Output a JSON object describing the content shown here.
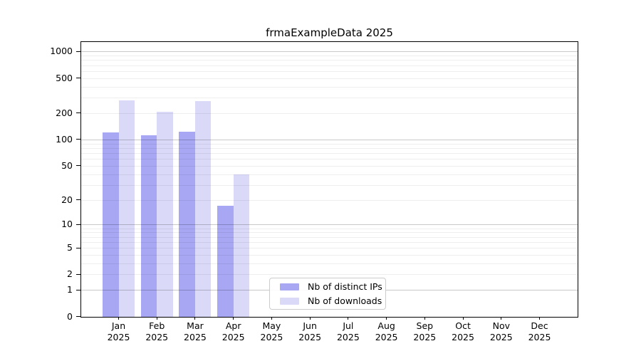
{
  "chart_data": {
    "type": "bar",
    "title": "frmaExampleData 2025",
    "x_categories": [
      "Jan",
      "Feb",
      "Mar",
      "Apr",
      "May",
      "Jun",
      "Jul",
      "Aug",
      "Sep",
      "Oct",
      "Nov",
      "Dec"
    ],
    "x_year": "2025",
    "series": [
      {
        "name": "Nb of distinct IPs",
        "color": "#a7a7f3",
        "values": [
          120,
          112,
          123,
          17,
          0,
          0,
          0,
          0,
          0,
          0,
          0,
          0
        ]
      },
      {
        "name": "Nb of downloads",
        "color": "#dadaf8",
        "values": [
          280,
          208,
          276,
          40,
          0,
          0,
          0,
          0,
          0,
          0,
          0,
          0
        ]
      }
    ],
    "y_scale": "log1p",
    "y_ticks": [
      0,
      1,
      2,
      5,
      10,
      20,
      50,
      100,
      200,
      500,
      1000
    ],
    "y_major_gridlines": [
      1,
      10,
      100,
      1000
    ],
    "y_minor_gridlines": [
      2,
      3,
      4,
      5,
      6,
      7,
      8,
      9,
      20,
      30,
      40,
      50,
      60,
      70,
      80,
      90,
      200,
      300,
      400,
      500,
      600,
      700,
      800,
      900
    ],
    "ylim": [
      0,
      1350
    ],
    "grid": "horizontal",
    "legend_position": "lower center"
  }
}
